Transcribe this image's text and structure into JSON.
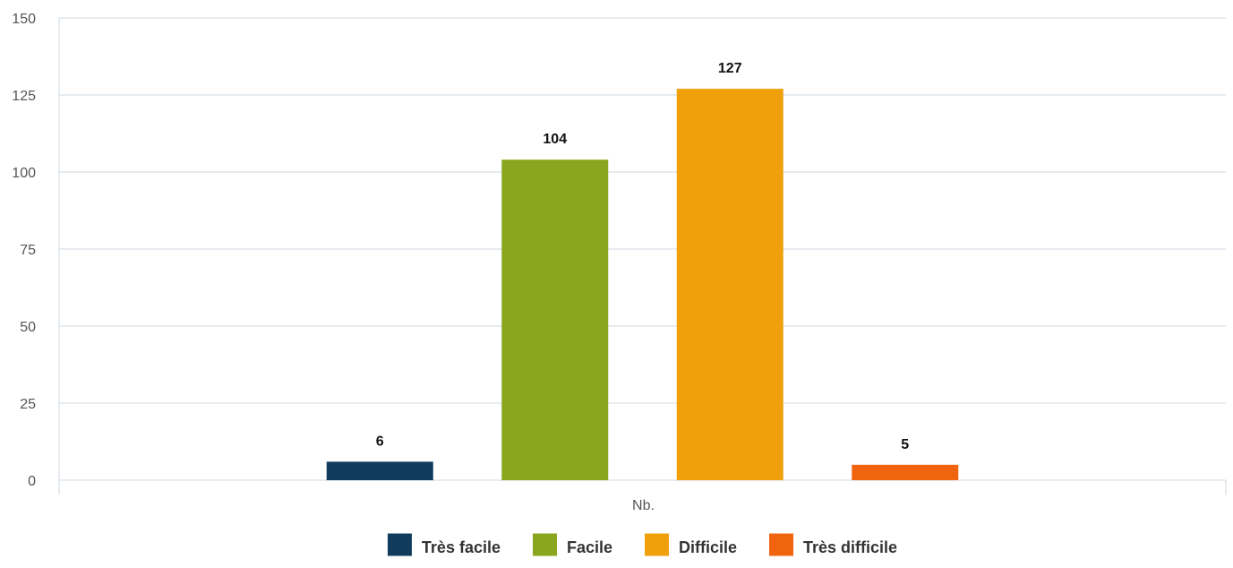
{
  "chart_data": {
    "type": "bar",
    "categories": [
      "Nb."
    ],
    "series": [
      {
        "name": "Très facile",
        "values": [
          6
        ],
        "color": "#0f3c5c"
      },
      {
        "name": "Facile",
        "values": [
          104
        ],
        "color": "#8aa61e"
      },
      {
        "name": "Difficile",
        "values": [
          127
        ],
        "color": "#f0a00a"
      },
      {
        "name": "Très difficile",
        "values": [
          5
        ],
        "color": "#f06410"
      }
    ],
    "yticks": [
      0,
      25,
      50,
      75,
      100,
      125,
      150
    ],
    "ylim": [
      0,
      150
    ],
    "grid": true,
    "legend": "bottom-center",
    "data_labels": true
  }
}
